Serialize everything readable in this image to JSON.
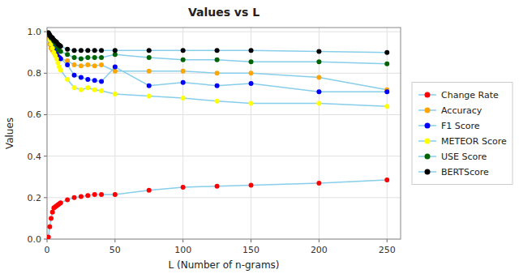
{
  "chart_data": {
    "type": "line",
    "title": "Values vs L",
    "x_label": "L (Number of n-grams)",
    "y_label": "Values",
    "x": [
      1,
      2,
      3,
      4,
      5,
      6,
      7,
      8,
      9,
      10,
      15,
      20,
      25,
      30,
      35,
      40,
      50,
      75,
      100,
      125,
      150,
      200,
      250
    ],
    "xlim": [
      0,
      260
    ],
    "ylim": [
      0.0,
      1.02
    ],
    "xticks": [
      0,
      50,
      100,
      150,
      200,
      250
    ],
    "yticks": [
      {
        "value": 0.0,
        "label": "0.0"
      },
      0.2,
      0.4,
      0.6,
      0.8,
      {
        "value": 1.0,
        "label": "1.0"
      }
    ],
    "grid": true,
    "legend": "right",
    "color": "#87CEEB",
    "series": [
      {
        "name": "Change Rate",
        "color": "#FF0000",
        "marker": "circle",
        "values": [
          0.01,
          0.06,
          0.1,
          0.13,
          0.15,
          0.155,
          0.16,
          0.165,
          0.17,
          0.175,
          0.19,
          0.2,
          0.205,
          0.21,
          0.215,
          0.215,
          0.215,
          0.235,
          0.25,
          0.255,
          0.26,
          0.27,
          0.285
        ]
      },
      {
        "name": "Accuracy",
        "color": "#FFA500",
        "marker": "circle",
        "values": [
          0.97,
          0.94,
          0.92,
          0.91,
          0.9,
          0.89,
          0.89,
          0.88,
          0.875,
          0.87,
          0.86,
          0.84,
          0.835,
          0.84,
          0.835,
          0.84,
          0.81,
          0.81,
          0.81,
          0.8,
          0.8,
          0.78,
          0.72
        ]
      },
      {
        "name": "F1 Score",
        "color": "#0000FF",
        "marker": "circle",
        "values": [
          0.985,
          0.96,
          0.94,
          0.93,
          0.915,
          0.905,
          0.895,
          0.88,
          0.875,
          0.87,
          0.84,
          0.79,
          0.78,
          0.77,
          0.765,
          0.76,
          0.83,
          0.74,
          0.755,
          0.74,
          0.75,
          0.71,
          0.71
        ]
      },
      {
        "name": "METEOR Score",
        "color": "#FFFF00",
        "marker": "circle",
        "values": [
          0.99,
          0.96,
          0.94,
          0.92,
          0.9,
          0.885,
          0.87,
          0.85,
          0.83,
          0.815,
          0.77,
          0.73,
          0.72,
          0.73,
          0.72,
          0.715,
          0.7,
          0.69,
          0.68,
          0.665,
          0.655,
          0.655,
          0.64
        ]
      },
      {
        "name": "USE Score",
        "color": "#006400",
        "marker": "circle",
        "values": [
          0.995,
          0.98,
          0.97,
          0.965,
          0.955,
          0.945,
          0.935,
          0.92,
          0.91,
          0.905,
          0.89,
          0.875,
          0.87,
          0.875,
          0.875,
          0.875,
          0.89,
          0.875,
          0.865,
          0.865,
          0.855,
          0.855,
          0.845
        ]
      },
      {
        "name": "BERTScore",
        "color": "#000000",
        "marker": "circle",
        "values": [
          0.995,
          0.985,
          0.975,
          0.97,
          0.96,
          0.955,
          0.95,
          0.94,
          0.935,
          0.93,
          0.915,
          0.91,
          0.91,
          0.91,
          0.91,
          0.91,
          0.91,
          0.91,
          0.91,
          0.91,
          0.91,
          0.905,
          0.9
        ]
      }
    ]
  }
}
